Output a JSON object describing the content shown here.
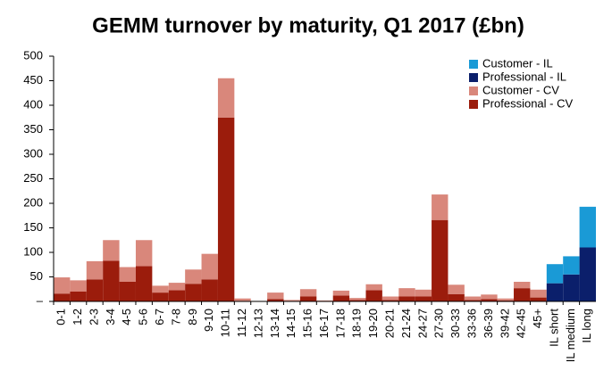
{
  "chart_data": {
    "type": "stacked_bar",
    "title": "GEMM turnover by maturity, Q1 2017 (£bn)",
    "categories": [
      "0-1",
      "1-2",
      "2-3",
      "3-4",
      "4-5",
      "5-6",
      "6-7",
      "7-8",
      "8-9",
      "9-10",
      "10-11",
      "11-12",
      "12-13",
      "13-14",
      "14-15",
      "15-16",
      "16-17",
      "17-18",
      "18-19",
      "19-20",
      "20-21",
      "21-24",
      "24-27",
      "27-30",
      "30-33",
      "33-36",
      "36-39",
      "39-42",
      "42-45",
      "45+",
      "IL short",
      "IL medium",
      "IL long"
    ],
    "series": [
      {
        "name": "Professional - CV",
        "color": "#9b1c0c",
        "values": [
          16,
          20,
          45,
          83,
          40,
          72,
          18,
          23,
          36,
          45,
          375,
          0,
          0,
          5,
          1,
          10,
          1,
          12,
          3,
          23,
          3,
          10,
          10,
          166,
          15,
          3,
          5,
          2,
          27,
          8,
          0,
          0,
          0
        ]
      },
      {
        "name": "Customer - CV",
        "color": "#d9877b",
        "values": [
          33,
          23,
          37,
          42,
          30,
          53,
          14,
          15,
          29,
          52,
          80,
          6,
          1,
          13,
          2,
          15,
          1,
          10,
          4,
          12,
          7,
          17,
          14,
          52,
          19,
          7,
          9,
          4,
          13,
          16,
          0,
          0,
          0
        ]
      },
      {
        "name": "Professional - IL",
        "color": "#0b1f6b",
        "values": [
          0,
          0,
          0,
          0,
          0,
          0,
          0,
          0,
          0,
          0,
          0,
          0,
          0,
          0,
          0,
          0,
          0,
          0,
          0,
          0,
          0,
          0,
          0,
          0,
          0,
          0,
          0,
          0,
          0,
          0,
          37,
          55,
          110
        ]
      },
      {
        "name": "Customer - IL",
        "color": "#1a9ad6",
        "values": [
          0,
          0,
          0,
          0,
          0,
          0,
          0,
          0,
          0,
          0,
          0,
          0,
          0,
          0,
          0,
          0,
          0,
          0,
          0,
          0,
          0,
          0,
          0,
          0,
          0,
          0,
          0,
          0,
          0,
          0,
          39,
          37,
          83
        ]
      }
    ],
    "ylim": [
      0,
      500
    ],
    "yticks": [
      {
        "value": 0,
        "label": "–"
      },
      50,
      100,
      150,
      200,
      250,
      300,
      350,
      400,
      450,
      500
    ],
    "legend": "top-right"
  }
}
